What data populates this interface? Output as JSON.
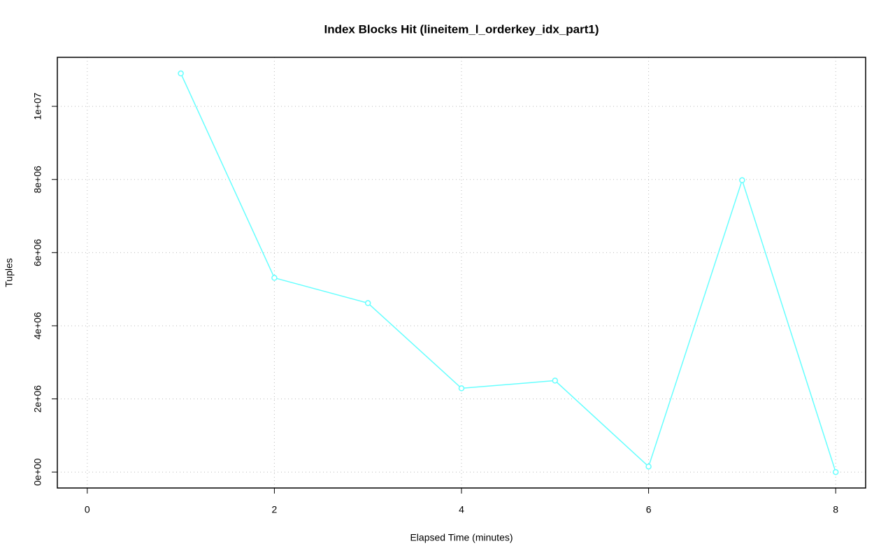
{
  "chart_data": {
    "type": "line",
    "title": "Index Blocks Hit (lineitem_l_orderkey_idx_part1)",
    "x_label": "Elapsed Time (minutes)",
    "y_label": "Tuples",
    "x": [
      1,
      2,
      3,
      4,
      5,
      6,
      7,
      8
    ],
    "series": [
      {
        "color": "#66ffff",
        "values": [
          10900000,
          5310000,
          4620000,
          2290000,
          2500000,
          150000,
          7980000,
          0
        ]
      }
    ],
    "xlim": [
      -0.32,
      8.32
    ],
    "ylim": [
      -436000,
      11340000
    ],
    "xticks": [
      0,
      2,
      4,
      6,
      8
    ],
    "yticks": [
      {
        "value": 0,
        "label": "0e+00"
      },
      {
        "value": 2000000,
        "label": "2e+06"
      },
      {
        "value": 4000000,
        "label": "4e+06"
      },
      {
        "value": 6000000,
        "label": "6e+06"
      },
      {
        "value": 8000000,
        "label": "8e+06"
      },
      {
        "value": 10000000,
        "label": "1e+07"
      }
    ],
    "grid": true
  }
}
